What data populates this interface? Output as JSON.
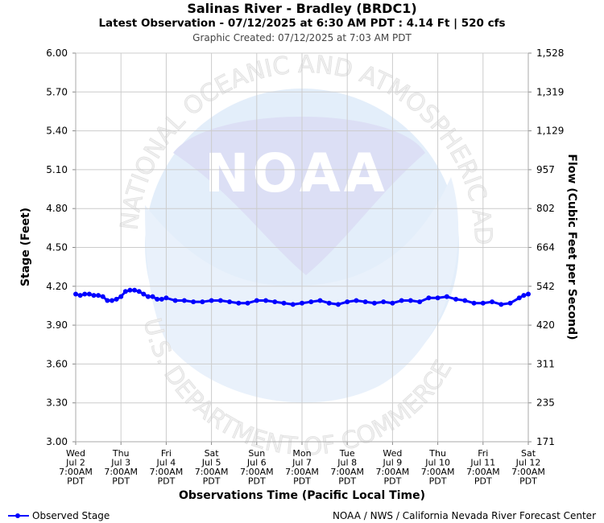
{
  "header": {
    "title": "Salinas River - Bradley (BRDC1)",
    "subtitle": "Latest Observation - 07/12/2025 at 6:30 AM PDT : 4.14 Ft | 520 cfs",
    "created": "Graphic Created: 07/12/2025 at 7:03 AM PDT"
  },
  "watermark": {
    "logo_text": "NOAA",
    "ring_top": "NATIONAL OCEANIC AND ATMOSPHERIC ADMINISTRATION",
    "ring_bottom": "U.S. DEPARTMENT OF COMMERCE"
  },
  "legend": {
    "label": "Observed Stage",
    "color": "#0000ff"
  },
  "footer": {
    "credit": "NOAA / NWS / California Nevada River Forecast Center"
  },
  "chart_data": {
    "type": "line",
    "ylabel": "Stage (Feet)",
    "y2label": "Flow (Cubic Feet per Second)",
    "xlabel": "Observations Time (Pacific Local Time)",
    "ylim": [
      3.0,
      6.0
    ],
    "yticks": [
      "6.00",
      "5.70",
      "5.40",
      "5.10",
      "4.80",
      "4.50",
      "4.20",
      "3.90",
      "3.60",
      "3.30",
      "3.00"
    ],
    "y2ticks": [
      "1,528",
      "1,319",
      "1,129",
      "957",
      "802",
      "664",
      "542",
      "420",
      "311",
      "235",
      "171"
    ],
    "xticks": [
      [
        "Wed",
        "Jul 2",
        "7:00AM",
        "PDT"
      ],
      [
        "Thu",
        "Jul 3",
        "7:00AM",
        "PDT"
      ],
      [
        "Fri",
        "Jul 4",
        "7:00AM",
        "PDT"
      ],
      [
        "Sat",
        "Jul 5",
        "7:00AM",
        "PDT"
      ],
      [
        "Sun",
        "Jul 6",
        "7:00AM",
        "PDT"
      ],
      [
        "Mon",
        "Jul 7",
        "7:00AM",
        "PDT"
      ],
      [
        "Tue",
        "Jul 8",
        "7:00AM",
        "PDT"
      ],
      [
        "Wed",
        "Jul 9",
        "7:00AM",
        "PDT"
      ],
      [
        "Thu",
        "Jul 10",
        "7:00AM",
        "PDT"
      ],
      [
        "Fri",
        "Jul 11",
        "7:00AM",
        "PDT"
      ],
      [
        "Sat",
        "Jul 12",
        "7:00AM",
        "PDT"
      ]
    ],
    "grid": true,
    "series": [
      {
        "name": "Observed Stage",
        "color": "#0000ff",
        "x_days_unit": "days after Jul 2 7:00AM",
        "x": [
          0.0,
          0.1,
          0.2,
          0.3,
          0.4,
          0.5,
          0.6,
          0.7,
          0.8,
          0.9,
          1.0,
          1.1,
          1.2,
          1.3,
          1.4,
          1.5,
          1.6,
          1.7,
          1.8,
          1.9,
          2.0,
          2.2,
          2.4,
          2.6,
          2.8,
          3.0,
          3.2,
          3.4,
          3.6,
          3.8,
          4.0,
          4.2,
          4.4,
          4.6,
          4.8,
          5.0,
          5.2,
          5.4,
          5.6,
          5.8,
          6.0,
          6.2,
          6.4,
          6.6,
          6.8,
          7.0,
          7.2,
          7.4,
          7.6,
          7.8,
          8.0,
          8.2,
          8.4,
          8.6,
          8.8,
          9.0,
          9.2,
          9.4,
          9.6,
          9.8,
          9.9,
          10.0
        ],
        "values": [
          4.14,
          4.13,
          4.14,
          4.14,
          4.13,
          4.13,
          4.12,
          4.09,
          4.09,
          4.1,
          4.12,
          4.16,
          4.17,
          4.17,
          4.16,
          4.14,
          4.12,
          4.12,
          4.1,
          4.1,
          4.11,
          4.09,
          4.09,
          4.08,
          4.08,
          4.09,
          4.09,
          4.08,
          4.07,
          4.07,
          4.09,
          4.09,
          4.08,
          4.07,
          4.06,
          4.07,
          4.08,
          4.09,
          4.07,
          4.06,
          4.08,
          4.09,
          4.08,
          4.07,
          4.08,
          4.07,
          4.09,
          4.09,
          4.08,
          4.11,
          4.11,
          4.12,
          4.1,
          4.09,
          4.07,
          4.07,
          4.08,
          4.06,
          4.07,
          4.11,
          4.13,
          4.14
        ]
      }
    ]
  }
}
